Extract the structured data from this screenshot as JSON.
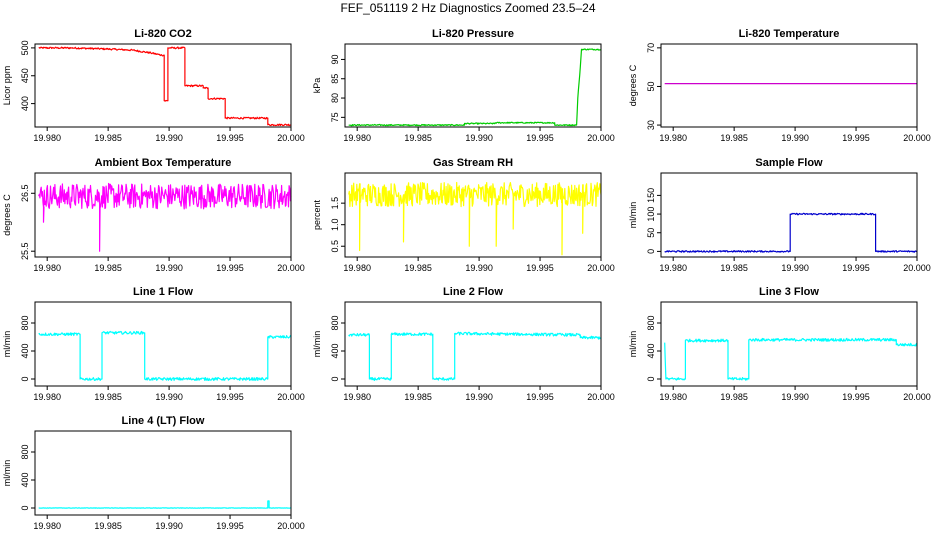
{
  "title": "FEF_051119  2 Hz Diagnostics Zoomed 23.5–24",
  "chart_data": [
    {
      "type": "line",
      "title": "Li-820 CO2",
      "ylabel": "Licor ppm",
      "color": "#ff0000",
      "xlim": [
        19.979,
        20.0
      ],
      "ylim": [
        358,
        507
      ],
      "xticks": [
        19.98,
        19.985,
        19.99,
        19.995,
        20.0
      ],
      "xtick_labels": [
        "19.980",
        "19.985",
        "19.990",
        "19.995",
        "20.000"
      ],
      "yticks": [
        400,
        450,
        500
      ],
      "ytick_labels": [
        "400",
        "450",
        "500"
      ],
      "x": [
        19.9793,
        19.982,
        19.985,
        19.987,
        19.9885,
        19.9894,
        19.9896,
        19.9896,
        19.9899,
        19.9899,
        19.9913,
        19.9913,
        19.9928,
        19.9928,
        19.9932,
        19.9932,
        19.9946,
        19.9946,
        19.9981,
        19.9981,
        20.0
      ],
      "values": [
        500,
        500,
        498,
        496,
        491,
        487,
        487,
        405,
        405,
        500,
        500,
        432,
        432,
        428,
        428,
        409,
        409,
        374,
        374,
        362,
        362
      ],
      "noise": 1.5
    },
    {
      "type": "line",
      "title": "Li-820 Pressure",
      "ylabel": "kPa",
      "color": "#00cc00",
      "xlim": [
        19.979,
        20.0
      ],
      "ylim": [
        72.5,
        94
      ],
      "xticks": [
        19.98,
        19.985,
        19.99,
        19.995,
        20.0
      ],
      "xtick_labels": [
        "19.980",
        "19.985",
        "19.990",
        "19.995",
        "20.000"
      ],
      "yticks": [
        75,
        80,
        85,
        90
      ],
      "ytick_labels": [
        "75",
        "80",
        "85",
        "90"
      ],
      "x": [
        19.9793,
        19.9888,
        19.9888,
        19.9913,
        19.9913,
        19.9962,
        19.9962,
        19.998,
        19.9981,
        19.9983,
        19.9984,
        20.0
      ],
      "values": [
        73.0,
        73.0,
        73.4,
        73.4,
        73.6,
        73.6,
        73.0,
        73.0,
        80.0,
        88.0,
        92.6,
        92.6
      ],
      "noise": 0.15
    },
    {
      "type": "line",
      "title": "Li-820 Temperature",
      "ylabel": "degrees C",
      "color": "#cc00cc",
      "xlim": [
        19.979,
        20.0
      ],
      "ylim": [
        29,
        72
      ],
      "xticks": [
        19.98,
        19.985,
        19.99,
        19.995,
        20.0
      ],
      "xtick_labels": [
        "19.980",
        "19.985",
        "19.990",
        "19.995",
        "20.000"
      ],
      "yticks": [
        30,
        50,
        70
      ],
      "ytick_labels": [
        "30",
        "50",
        "70"
      ],
      "x": [
        19.9793,
        20.0
      ],
      "values": [
        51.5,
        51.5
      ],
      "noise": 0
    },
    {
      "type": "line",
      "title": "Ambient Box Temperature",
      "ylabel": "degrees C",
      "color": "#ff00ff",
      "xlim": [
        19.979,
        20.0
      ],
      "ylim": [
        25.4,
        26.85
      ],
      "xticks": [
        19.98,
        19.985,
        19.99,
        19.995,
        20.0
      ],
      "xtick_labels": [
        "19.980",
        "19.985",
        "19.990",
        "19.995",
        "20.000"
      ],
      "yticks": [
        25.5,
        26.5
      ],
      "ytick_labels": [
        "25.5",
        "26.5"
      ],
      "x": [
        19.9793,
        20.0
      ],
      "values": [
        26.45,
        26.45
      ],
      "noise": 0.22,
      "spikes": [
        {
          "x": 19.9843,
          "value": 25.5
        },
        {
          "x": 19.9797,
          "value": 26.0
        }
      ]
    },
    {
      "type": "line",
      "title": "Gas Stream RH",
      "ylabel": "percent",
      "color": "#ffff00",
      "xlim": [
        19.979,
        20.0
      ],
      "ylim": [
        0.25,
        2.2
      ],
      "xticks": [
        19.98,
        19.985,
        19.99,
        19.995,
        20.0
      ],
      "xtick_labels": [
        "19.980",
        "19.985",
        "19.990",
        "19.995",
        "20.000"
      ],
      "yticks": [
        0.5,
        1.0,
        1.5
      ],
      "ytick_labels": [
        "0.5",
        "1.0",
        "1.5"
      ],
      "x": [
        19.9793,
        20.0
      ],
      "values": [
        1.7,
        1.7
      ],
      "noise": 0.28,
      "spikes": [
        {
          "x": 19.9802,
          "value": 0.4
        },
        {
          "x": 19.9838,
          "value": 0.6
        },
        {
          "x": 19.9892,
          "value": 0.5
        },
        {
          "x": 19.9914,
          "value": 0.5
        },
        {
          "x": 19.9928,
          "value": 0.9
        },
        {
          "x": 19.9968,
          "value": 0.3
        },
        {
          "x": 19.9985,
          "value": 0.8
        }
      ]
    },
    {
      "type": "line",
      "title": "Sample Flow",
      "ylabel": "ml/min",
      "color": "#0000cc",
      "xlim": [
        19.979,
        20.0
      ],
      "ylim": [
        -15,
        210
      ],
      "xticks": [
        19.98,
        19.985,
        19.99,
        19.995,
        20.0
      ],
      "xtick_labels": [
        "19.980",
        "19.985",
        "19.990",
        "19.995",
        "20.000"
      ],
      "yticks": [
        0,
        50,
        100,
        150
      ],
      "ytick_labels": [
        "0",
        "50",
        "100",
        "150"
      ],
      "x": [
        19.9793,
        19.9896,
        19.9896,
        19.9966,
        19.9966,
        20.0
      ],
      "values": [
        0,
        0,
        100,
        100,
        0,
        0
      ],
      "noise": 2
    },
    {
      "type": "line",
      "title": "Line 1 Flow",
      "ylabel": "ml/min",
      "color": "#00ffff",
      "xlim": [
        19.979,
        20.0
      ],
      "ylim": [
        -100,
        1100
      ],
      "xticks": [
        19.98,
        19.985,
        19.99,
        19.995,
        20.0
      ],
      "xtick_labels": [
        "19.980",
        "19.985",
        "19.990",
        "19.995",
        "20.000"
      ],
      "yticks": [
        0,
        400,
        800
      ],
      "ytick_labels": [
        "0",
        "400",
        "800"
      ],
      "x": [
        19.9793,
        19.9827,
        19.9827,
        19.9845,
        19.9845,
        19.988,
        19.988,
        19.9981,
        19.9981,
        20.0
      ],
      "values": [
        640,
        640,
        0,
        0,
        660,
        660,
        0,
        0,
        600,
        600
      ],
      "noise": 20
    },
    {
      "type": "line",
      "title": "Line 2 Flow",
      "ylabel": "ml/min",
      "color": "#00ffff",
      "xlim": [
        19.979,
        20.0
      ],
      "ylim": [
        -100,
        1100
      ],
      "xticks": [
        19.98,
        19.985,
        19.99,
        19.995,
        20.0
      ],
      "xtick_labels": [
        "19.980",
        "19.985",
        "19.990",
        "19.995",
        "20.000"
      ],
      "yticks": [
        0,
        400,
        800
      ],
      "ytick_labels": [
        "0",
        "400",
        "800"
      ],
      "x": [
        19.9793,
        19.981,
        19.981,
        19.9828,
        19.9828,
        19.9862,
        19.9862,
        19.988,
        19.988,
        19.9983,
        19.9983,
        20.0
      ],
      "values": [
        630,
        630,
        0,
        0,
        640,
        640,
        0,
        0,
        650,
        630,
        590,
        590
      ],
      "noise": 20
    },
    {
      "type": "line",
      "title": "Line 3 Flow",
      "ylabel": "ml/min",
      "color": "#00ffff",
      "xlim": [
        19.979,
        20.0
      ],
      "ylim": [
        -100,
        1100
      ],
      "xticks": [
        19.98,
        19.985,
        19.99,
        19.995,
        20.0
      ],
      "xtick_labels": [
        "19.980",
        "19.985",
        "19.990",
        "19.995",
        "20.000"
      ],
      "yticks": [
        0,
        400,
        800
      ],
      "ytick_labels": [
        "0",
        "400",
        "800"
      ],
      "x": [
        19.9793,
        19.9794,
        19.9794,
        19.981,
        19.981,
        19.9845,
        19.9845,
        19.9862,
        19.9862,
        19.9983,
        19.9983,
        20.0
      ],
      "values": [
        520,
        0,
        0,
        0,
        550,
        550,
        0,
        0,
        560,
        560,
        490,
        490
      ],
      "noise": 20
    },
    {
      "type": "line",
      "title": "Line 4 (LT) Flow",
      "ylabel": "ml/min",
      "color": "#00ffff",
      "xlim": [
        19.979,
        20.0
      ],
      "ylim": [
        -100,
        1100
      ],
      "xticks": [
        19.98,
        19.985,
        19.99,
        19.995,
        20.0
      ],
      "xtick_labels": [
        "19.980",
        "19.985",
        "19.990",
        "19.995",
        "20.000"
      ],
      "yticks": [
        0,
        400,
        800
      ],
      "ytick_labels": [
        "0",
        "400",
        "800"
      ],
      "x": [
        19.9793,
        19.9981,
        19.9981,
        19.9982,
        19.9982,
        20.0
      ],
      "values": [
        0,
        0,
        100,
        100,
        0,
        0
      ],
      "noise": 3
    }
  ]
}
